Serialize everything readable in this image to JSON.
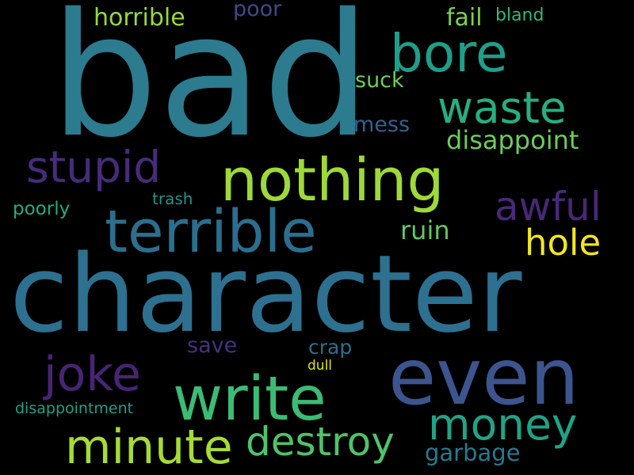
{
  "background_color": "#000000",
  "words": [
    {
      "text": "bad",
      "color": "#2c7b8f"
    },
    {
      "text": "character",
      "color": "#2d7090"
    },
    {
      "text": "nothing",
      "color": "#9ed93a"
    },
    {
      "text": "even",
      "color": "#3c558e"
    },
    {
      "text": "terrible",
      "color": "#2c6e8e"
    },
    {
      "text": "write",
      "color": "#3cbb75"
    },
    {
      "text": "bore",
      "color": "#1f9e89"
    },
    {
      "text": "waste",
      "color": "#28ae80"
    },
    {
      "text": "stupid",
      "color": "#472c7a"
    },
    {
      "text": "joke",
      "color": "#482475"
    },
    {
      "text": "minute",
      "color": "#a5db36"
    },
    {
      "text": "money",
      "color": "#20a386"
    },
    {
      "text": "destroy",
      "color": "#4ec36b"
    },
    {
      "text": "awful",
      "color": "#482878"
    },
    {
      "text": "hole",
      "color": "#f4e61e"
    },
    {
      "text": "disappoint",
      "color": "#6ccd5a"
    },
    {
      "text": "horrible",
      "color": "#95d840"
    },
    {
      "text": "poor",
      "color": "#3e4a89"
    },
    {
      "text": "fail",
      "color": "#7ad151"
    },
    {
      "text": "bland",
      "color": "#35b779"
    },
    {
      "text": "suck",
      "color": "#6ece58"
    },
    {
      "text": "mess",
      "color": "#34618d"
    },
    {
      "text": "ruin",
      "color": "#5ec962"
    },
    {
      "text": "trash",
      "color": "#1f948c"
    },
    {
      "text": "poorly",
      "color": "#25ac82"
    },
    {
      "text": "save",
      "color": "#46327e"
    },
    {
      "text": "crap",
      "color": "#2e6f8e"
    },
    {
      "text": "dull",
      "color": "#dde318"
    },
    {
      "text": "garbage",
      "color": "#2a788e"
    },
    {
      "text": "disappointment",
      "color": "#1fa088"
    }
  ]
}
